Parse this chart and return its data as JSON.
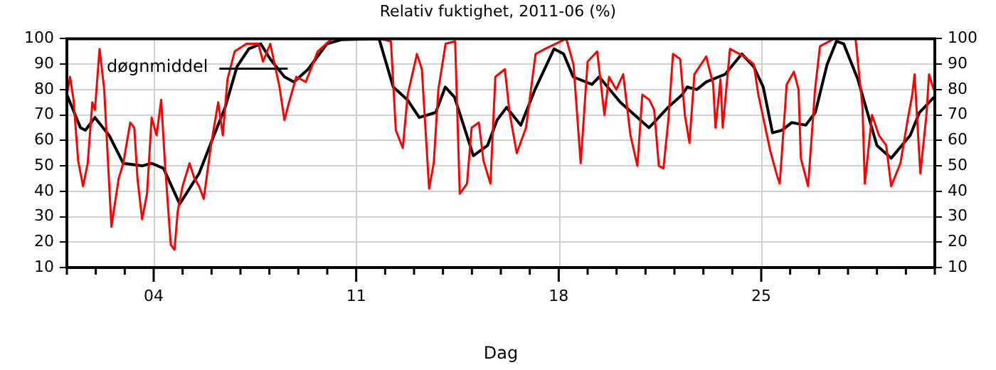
{
  "chart_data": {
    "type": "line",
    "title": "Relativ fuktighet, 2011-06 (%)",
    "xlabel": "Dag",
    "xlim": [
      1,
      31
    ],
    "xticks": [
      {
        "value": 1,
        "label": null
      },
      {
        "value": 2,
        "label": null
      },
      {
        "value": 3,
        "label": null
      },
      {
        "value": 4,
        "label": "04"
      },
      {
        "value": 5,
        "label": null
      },
      {
        "value": 6,
        "label": null
      },
      {
        "value": 7,
        "label": null
      },
      {
        "value": 8,
        "label": null
      },
      {
        "value": 9,
        "label": null
      },
      {
        "value": 10,
        "label": null
      },
      {
        "value": 11,
        "label": "11"
      },
      {
        "value": 12,
        "label": null
      },
      {
        "value": 13,
        "label": null
      },
      {
        "value": 14,
        "label": null
      },
      {
        "value": 15,
        "label": null
      },
      {
        "value": 16,
        "label": null
      },
      {
        "value": 17,
        "label": null
      },
      {
        "value": 18,
        "label": "18"
      },
      {
        "value": 19,
        "label": null
      },
      {
        "value": 20,
        "label": null
      },
      {
        "value": 21,
        "label": null
      },
      {
        "value": 22,
        "label": null
      },
      {
        "value": 23,
        "label": null
      },
      {
        "value": 24,
        "label": null
      },
      {
        "value": 25,
        "label": "25"
      },
      {
        "value": 26,
        "label": null
      },
      {
        "value": 27,
        "label": null
      },
      {
        "value": 28,
        "label": null
      },
      {
        "value": 29,
        "label": null
      },
      {
        "value": 30,
        "label": null
      },
      {
        "value": 31,
        "label": null
      }
    ],
    "ylim": [
      10,
      100
    ],
    "yticks": [
      10,
      20,
      30,
      40,
      50,
      60,
      70,
      80,
      90,
      100
    ],
    "y2lim": [
      10,
      100
    ],
    "y2ticks": [
      10,
      20,
      30,
      40,
      50,
      60,
      70,
      80,
      90,
      100
    ],
    "grid": true,
    "legend": "top left",
    "marker": "none",
    "line_style": "solid",
    "series": [
      {
        "color": "#ff0000",
        "x": [
          1.0,
          1.11,
          1.23,
          1.39,
          1.56,
          1.72,
          1.88,
          1.97,
          2.13,
          2.29,
          2.54,
          2.79,
          2.95,
          3.19,
          3.33,
          3.44,
          3.6,
          3.77,
          3.93,
          4.1,
          4.26,
          4.39,
          4.59,
          4.72,
          4.83,
          5.0,
          5.24,
          5.41,
          5.57,
          5.73,
          5.98,
          6.23,
          6.39,
          6.55,
          6.8,
          7.21,
          7.62,
          7.78,
          8.03,
          8.35,
          8.52,
          8.68,
          8.93,
          9.26,
          9.67,
          10.16,
          11.79,
          12.2,
          12.37,
          12.61,
          12.78,
          13.1,
          13.27,
          13.52,
          13.68,
          13.84,
          14.09,
          14.42,
          14.58,
          14.83,
          14.99,
          15.24,
          15.4,
          15.64,
          15.81,
          16.14,
          16.3,
          16.55,
          16.87,
          17.2,
          17.53,
          18.26,
          18.51,
          18.76,
          19.0,
          19.33,
          19.58,
          19.74,
          19.99,
          20.23,
          20.48,
          20.72,
          20.89,
          21.13,
          21.3,
          21.46,
          21.62,
          21.79,
          21.95,
          22.2,
          22.36,
          22.52,
          22.69,
          23.1,
          23.34,
          23.42,
          23.59,
          23.67,
          23.92,
          24.41,
          24.74,
          24.9,
          25.31,
          25.55,
          25.64,
          25.88,
          26.13,
          26.29,
          26.37,
          26.62,
          26.86,
          27.03,
          27.52,
          28.26,
          28.5,
          28.58,
          28.83,
          29.07,
          29.32,
          29.49,
          29.81,
          30.06,
          30.22,
          30.3,
          30.5,
          30.71,
          30.8,
          30.96
        ],
        "values": [
          78,
          85,
          76,
          52,
          42,
          51,
          75,
          72,
          96,
          80,
          26,
          45,
          51,
          67,
          65,
          45,
          29,
          39,
          69,
          62,
          76,
          51,
          19,
          17,
          32,
          42,
          51,
          45,
          42,
          37,
          58,
          75,
          62,
          84,
          95,
          98,
          98,
          91,
          98,
          81,
          68,
          75,
          85,
          83,
          95,
          100,
          100,
          99,
          64,
          57,
          78,
          94,
          88,
          41,
          51,
          80,
          98,
          99,
          39,
          43,
          65,
          67,
          52,
          43,
          85,
          88,
          71,
          55,
          65,
          94,
          96,
          100,
          90,
          51,
          91,
          95,
          70,
          85,
          80,
          86,
          62,
          50,
          78,
          76,
          72,
          50,
          49,
          68,
          94,
          92,
          70,
          59,
          86,
          93,
          82,
          65,
          84,
          65,
          96,
          93,
          90,
          78,
          56,
          46,
          43,
          82,
          87,
          80,
          53,
          42,
          80,
          97,
          100,
          100,
          73,
          43,
          70,
          62,
          58,
          42,
          51,
          68,
          78,
          86,
          47,
          70,
          86,
          80
        ]
      },
      {
        "name": "døgnmiddel",
        "color": "#000000",
        "x": [
          1.0,
          1.47,
          1.64,
          1.97,
          2.46,
          2.95,
          3.6,
          3.93,
          4.34,
          4.9,
          5.57,
          5.98,
          6.47,
          6.88,
          7.29,
          7.7,
          8.03,
          8.52,
          8.85,
          9.34,
          9.99,
          10.48,
          11.79,
          12.28,
          12.77,
          13.18,
          13.75,
          14.08,
          14.4,
          15.05,
          15.54,
          15.87,
          16.2,
          16.69,
          17.18,
          17.84,
          18.17,
          18.5,
          19.15,
          19.4,
          20.13,
          21.12,
          21.29,
          21.78,
          22.27,
          22.44,
          22.77,
          23.1,
          23.75,
          24.33,
          24.74,
          25.07,
          25.39,
          25.72,
          26.05,
          26.54,
          26.87,
          27.28,
          27.6,
          27.85,
          28.34,
          29.0,
          29.49,
          30.15,
          30.47,
          30.97
        ],
        "values": [
          78,
          65,
          64,
          69,
          62,
          51,
          50,
          51,
          49,
          35,
          47,
          59,
          73,
          89,
          96,
          98,
          92,
          85,
          83,
          88,
          98,
          99.6,
          100,
          81,
          76,
          69,
          71,
          81,
          77,
          54,
          58,
          68,
          73,
          66,
          80,
          96,
          94,
          85,
          82,
          85,
          75,
          65,
          67,
          73,
          78,
          81,
          80,
          83,
          86,
          94,
          89,
          81,
          63,
          64,
          67,
          66,
          71,
          90,
          99,
          98,
          84,
          58,
          53,
          62,
          71,
          77
        ]
      }
    ]
  }
}
